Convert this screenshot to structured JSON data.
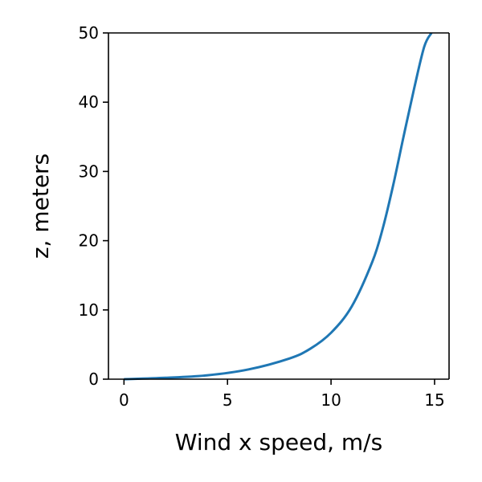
{
  "chart_data": {
    "type": "line",
    "title": "",
    "xlabel": "Wind x speed, m/s",
    "ylabel": "z, meters",
    "xlim": [
      -0.75,
      15.7
    ],
    "ylim": [
      0,
      50
    ],
    "x_ticks": [
      0,
      5,
      10,
      15
    ],
    "x_tick_labels": [
      "0",
      "5",
      "10",
      "15"
    ],
    "y_ticks": [
      0,
      10,
      20,
      30,
      40,
      50
    ],
    "y_tick_labels": [
      "0",
      "10",
      "20",
      "30",
      "40",
      "50"
    ],
    "grid": false,
    "legend": "none",
    "series": [
      {
        "color": "#1f77b4",
        "x": [
          0,
          2,
          4,
          6,
          8,
          9,
          10,
          11,
          12,
          12.5,
          13,
          13.5,
          14,
          14.5,
          14.85
        ],
        "y": [
          0,
          0.2,
          0.55,
          1.4,
          3.0,
          4.4,
          6.7,
          10.5,
          17.0,
          21.8,
          28.0,
          35.0,
          41.8,
          48.0,
          50.0
        ]
      }
    ]
  }
}
